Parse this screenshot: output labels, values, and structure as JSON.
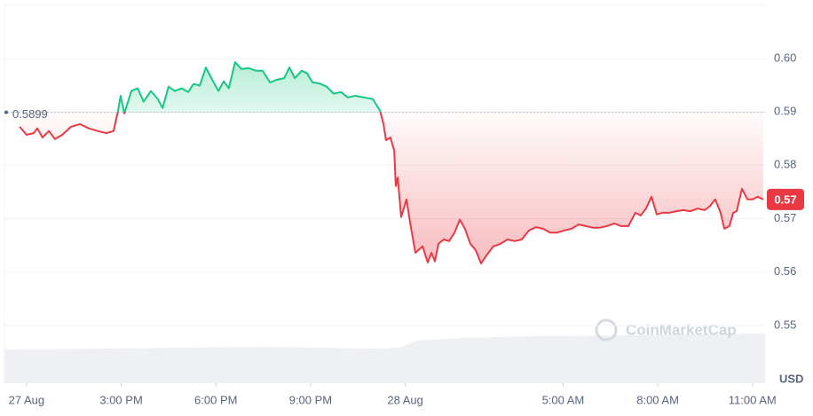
{
  "chart_data": {
    "type": "line",
    "currency_label": "USD",
    "watermark": "CoinMarketCap",
    "baseline": {
      "value": 0.5899,
      "label": "0.5899"
    },
    "last_value_label": "0.57",
    "up_color": "#16c784",
    "down_color": "#ea3943",
    "x": [
      11.78,
      12.0,
      12.23,
      12.34,
      12.51,
      12.71,
      12.9,
      13.13,
      13.41,
      13.69,
      13.97,
      14.25,
      14.53,
      14.76,
      14.9,
      14.98,
      15.1,
      15.32,
      15.52,
      15.71,
      15.94,
      16.16,
      16.31,
      16.5,
      16.7,
      16.92,
      17.12,
      17.29,
      17.49,
      17.68,
      17.91,
      18.08,
      18.25,
      18.41,
      18.61,
      18.81,
      19.03,
      19.26,
      19.48,
      19.71,
      19.93,
      20.16,
      20.33,
      20.5,
      20.72,
      20.89,
      21.06,
      21.28,
      21.51,
      21.73,
      21.96,
      22.18,
      22.41,
      22.69,
      22.97,
      23.2,
      23.31,
      23.39,
      23.53,
      23.65,
      23.7,
      23.76,
      23.87,
      24.04,
      24.15,
      24.32,
      24.55,
      24.71,
      24.83,
      24.94,
      25.05,
      25.22,
      25.39,
      25.56,
      25.73,
      25.89,
      26.06,
      26.23,
      26.4,
      26.57,
      26.79,
      27.02,
      27.24,
      27.47,
      27.69,
      27.92,
      28.14,
      28.37,
      28.59,
      28.82,
      29.04,
      29.27,
      29.49,
      29.72,
      29.94,
      30.17,
      30.39,
      30.62,
      30.84,
      31.07,
      31.29,
      31.46,
      31.63,
      31.8,
      31.97,
      32.14,
      32.36,
      32.59,
      32.81,
      33.04,
      33.26,
      33.49,
      33.66,
      33.82,
      33.99,
      34.11,
      34.27,
      34.39,
      34.5,
      34.67,
      34.84,
      35.01,
      35.17,
      35.34
    ],
    "values": [
      0.5872,
      0.5857,
      0.586,
      0.5869,
      0.5852,
      0.5864,
      0.5849,
      0.5857,
      0.5872,
      0.5877,
      0.5869,
      0.5864,
      0.586,
      0.5864,
      0.5902,
      0.593,
      0.5897,
      0.5939,
      0.5944,
      0.5919,
      0.5939,
      0.5924,
      0.5907,
      0.5947,
      0.5939,
      0.5944,
      0.5937,
      0.5952,
      0.5949,
      0.5983,
      0.5957,
      0.5939,
      0.5957,
      0.5944,
      0.5993,
      0.598,
      0.5982,
      0.5977,
      0.5977,
      0.5955,
      0.596,
      0.5963,
      0.5983,
      0.5963,
      0.5977,
      0.5972,
      0.5955,
      0.5953,
      0.5947,
      0.5934,
      0.5937,
      0.5927,
      0.593,
      0.5927,
      0.5924,
      0.5902,
      0.5877,
      0.5847,
      0.5852,
      0.5827,
      0.5761,
      0.5777,
      0.5703,
      0.5736,
      0.5694,
      0.5636,
      0.5648,
      0.5618,
      0.5636,
      0.562,
      0.5653,
      0.5661,
      0.5658,
      0.5674,
      0.5698,
      0.5681,
      0.5653,
      0.5641,
      0.5616,
      0.5631,
      0.5648,
      0.5653,
      0.5661,
      0.5658,
      0.5661,
      0.5678,
      0.5684,
      0.5681,
      0.5674,
      0.5674,
      0.5678,
      0.5681,
      0.5689,
      0.5686,
      0.5683,
      0.5683,
      0.5686,
      0.5691,
      0.5686,
      0.5686,
      0.5711,
      0.5706,
      0.5719,
      0.5741,
      0.5708,
      0.5711,
      0.5711,
      0.5714,
      0.5716,
      0.5714,
      0.5719,
      0.5716,
      0.5724,
      0.5736,
      0.5711,
      0.5681,
      0.5686,
      0.5711,
      0.5714,
      0.5756,
      0.5736,
      0.5736,
      0.5741,
      0.5736
    ],
    "xlim": [
      11.3,
      35.4
    ],
    "xticks": [
      {
        "value": 12,
        "label": "27 Aug"
      },
      {
        "value": 15,
        "label": "3:00 PM"
      },
      {
        "value": 18,
        "label": "6:00 PM"
      },
      {
        "value": 21,
        "label": "9:00 PM"
      },
      {
        "value": 24,
        "label": "28 Aug"
      },
      {
        "value": 29,
        "label": "5:00 AM"
      },
      {
        "value": 32,
        "label": "8:00 AM"
      },
      {
        "value": 35,
        "label": "11:00 AM"
      }
    ],
    "ylim": [
      0.5392,
      0.6101
    ],
    "yticks": [
      0.55,
      0.56,
      0.57,
      0.58,
      0.59,
      {
        "value": 0.6,
        "label": "0.60"
      }
    ],
    "grid": true
  }
}
